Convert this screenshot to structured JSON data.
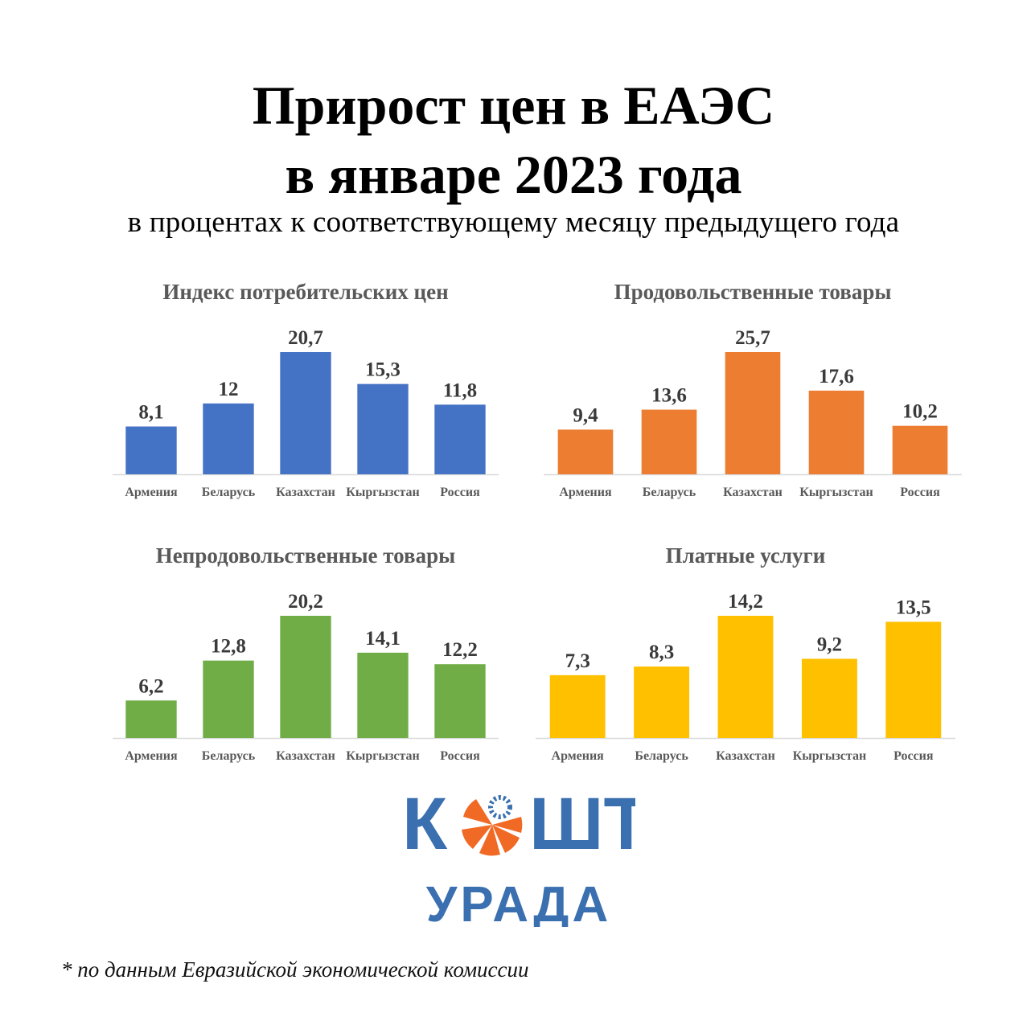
{
  "header": {
    "title_line1": "Прирост цен в ЕАЭС",
    "title_line2": "в январе 2023 года",
    "subtitle": "в процентах к соответствующему месяцу предыдущего года"
  },
  "chart_data": [
    {
      "type": "bar",
      "title": "Индекс потребительских цен",
      "categories": [
        "Армения",
        "Беларусь",
        "Казахстан",
        "Кыргызстан",
        "Россия"
      ],
      "values": [
        8.1,
        12,
        20.7,
        15.3,
        11.8
      ],
      "value_labels": [
        "8,1",
        "12",
        "20,7",
        "15,3",
        "11,8"
      ],
      "color": "#4472c4",
      "ylim": [
        0,
        20.7
      ]
    },
    {
      "type": "bar",
      "title": "Продовольственные товары",
      "categories": [
        "Армения",
        "Беларусь",
        "Казахстан",
        "Кыргызстан",
        "Россия"
      ],
      "values": [
        9.4,
        13.6,
        25.7,
        17.6,
        10.2
      ],
      "value_labels": [
        "9,4",
        "13,6",
        "25,7",
        "17,6",
        "10,2"
      ],
      "color": "#ed7d31",
      "ylim": [
        0,
        25.7
      ]
    },
    {
      "type": "bar",
      "title": "Непродовольственные товары",
      "categories": [
        "Армения",
        "Беларусь",
        "Казахстан",
        "Кыргызстан",
        "Россия"
      ],
      "values": [
        6.2,
        12.8,
        20.2,
        14.1,
        12.2
      ],
      "value_labels": [
        "6,2",
        "12,8",
        "20,2",
        "14,1",
        "12,2"
      ],
      "color": "#70ad47",
      "ylim": [
        0,
        20.2
      ]
    },
    {
      "type": "bar",
      "title": "Платные услуги",
      "categories": [
        "Армения",
        "Беларусь",
        "Казахстан",
        "Кыргызстан",
        "Россия"
      ],
      "values": [
        7.3,
        8.3,
        14.2,
        9.2,
        13.5
      ],
      "value_labels": [
        "7,3",
        "8,3",
        "14,2",
        "9,2",
        "13,5"
      ],
      "color": "#ffc000",
      "ylim": [
        0,
        14.2
      ]
    }
  ],
  "logo": {
    "line1": "КОШТ",
    "line2": "УРАДА",
    "color_blue": "#3a6fb0",
    "color_orange": "#f06a25"
  },
  "footnote": "* по данным Евразийской экономической комиссии"
}
